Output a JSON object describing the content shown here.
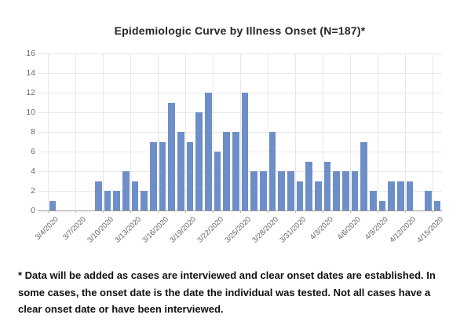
{
  "title": "Epidemiologic Curve by Illness Onset (N=187)*",
  "footnote": "* Data will be added as cases are interviewed and clear onset dates are established. In some cases, the onset date is the date the individual was tested. Not all cases have a clear onset date or have been interviewed.",
  "colors": {
    "bar": "#6E8EC8",
    "grid": "#E8E8E8",
    "axis": "#9B9B9B",
    "tick_stub": "#BBBBBB",
    "tick_label": "#666666",
    "title_text": "#262626",
    "footnote_text": "#111111"
  },
  "chart_data": {
    "type": "bar",
    "title": "Epidemiologic Curve by Illness Onset (N=187)*",
    "xlabel": "",
    "ylabel": "",
    "ylim": [
      0,
      16
    ],
    "y_tick_step": 2,
    "grid": true,
    "legend": "none",
    "x_tick_interval_days": 3,
    "x_tick_labels": [
      "3/4/2020",
      "3/7/2020",
      "3/10/2020",
      "3/13/2020",
      "3/16/2020",
      "3/19/2020",
      "3/22/2020",
      "3/25/2020",
      "3/28/2020",
      "3/31/2020",
      "4/3/2020",
      "4/6/2020",
      "4/9/2020",
      "4/12/2020",
      "4/15/2020"
    ],
    "categories": [
      "3/4/2020",
      "3/5/2020",
      "3/6/2020",
      "3/7/2020",
      "3/8/2020",
      "3/9/2020",
      "3/10/2020",
      "3/11/2020",
      "3/12/2020",
      "3/13/2020",
      "3/14/2020",
      "3/15/2020",
      "3/16/2020",
      "3/17/2020",
      "3/18/2020",
      "3/19/2020",
      "3/20/2020",
      "3/21/2020",
      "3/22/2020",
      "3/23/2020",
      "3/24/2020",
      "3/25/2020",
      "3/26/2020",
      "3/27/2020",
      "3/28/2020",
      "3/29/2020",
      "3/30/2020",
      "3/31/2020",
      "4/1/2020",
      "4/2/2020",
      "4/3/2020",
      "4/4/2020",
      "4/5/2020",
      "4/6/2020",
      "4/7/2020",
      "4/8/2020",
      "4/9/2020",
      "4/10/2020",
      "4/11/2020",
      "4/12/2020",
      "4/13/2020",
      "4/14/2020",
      "4/15/2020"
    ],
    "values": [
      1,
      0,
      0,
      0,
      0,
      3,
      2,
      2,
      4,
      3,
      2,
      7,
      7,
      11,
      8,
      7,
      10,
      12,
      6,
      8,
      8,
      12,
      4,
      4,
      8,
      4,
      4,
      3,
      5,
      3,
      5,
      4,
      4,
      4,
      7,
      2,
      1,
      3,
      3,
      3,
      0,
      2,
      1
    ],
    "total_cases_plotted": 187
  }
}
